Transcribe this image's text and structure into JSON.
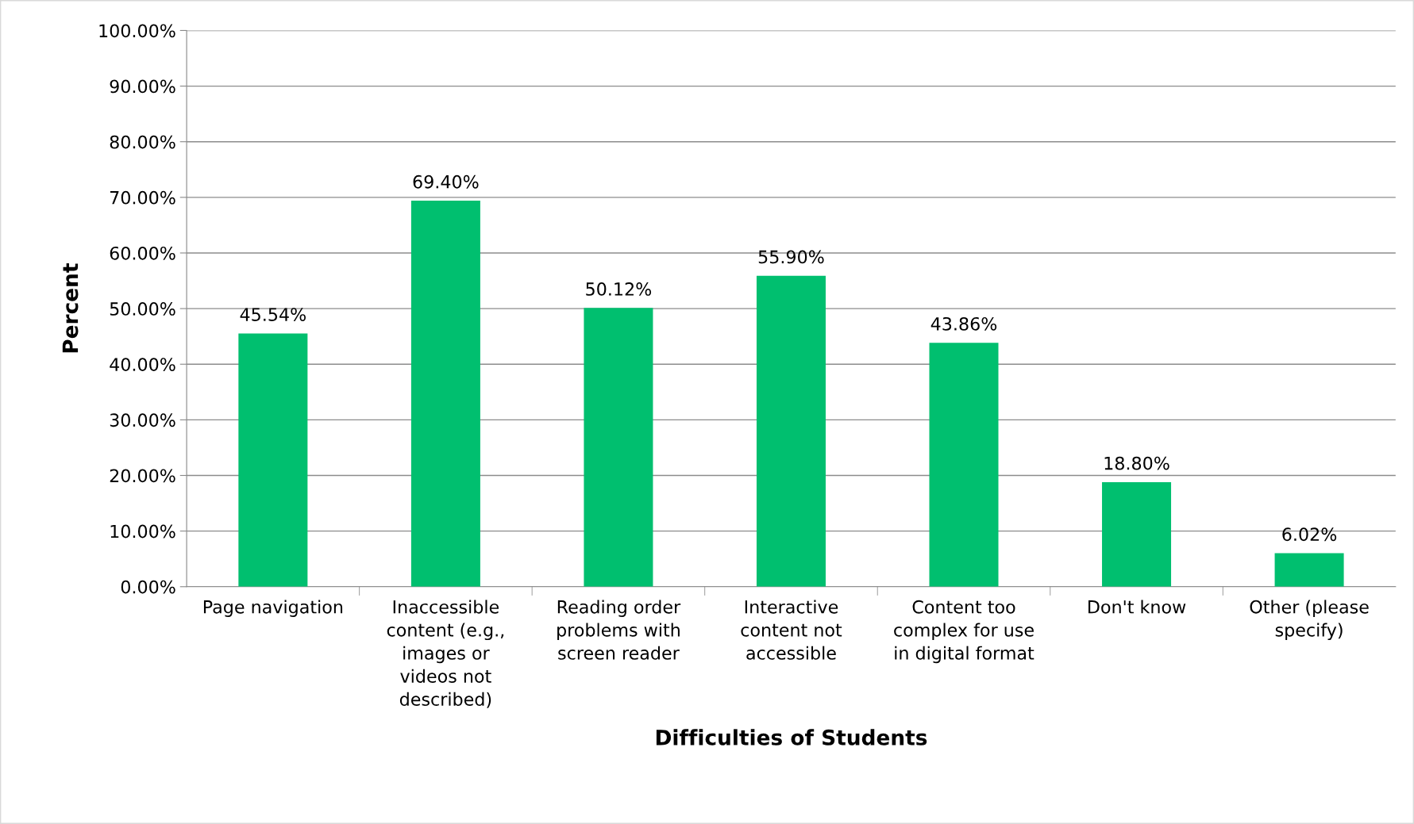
{
  "chart_data": {
    "type": "bar",
    "xlabel": "Difficulties of Students",
    "ylabel": "Percent",
    "categories": [
      "Page navigation",
      "Inaccessible\ncontent (e.g.,\nimages or\nvideos not\ndescribed)",
      "Reading order\nproblems with\nscreen reader",
      "Interactive\ncontent not\naccessible",
      "Content too\ncomplex for use\nin digital format",
      "Don't know",
      "Other (please\nspecify)"
    ],
    "values": [
      45.54,
      69.4,
      50.12,
      55.9,
      43.86,
      18.8,
      6.02
    ],
    "value_labels": [
      "45.54%",
      "69.40%",
      "50.12%",
      "55.90%",
      "43.86%",
      "18.80%",
      "6.02%"
    ],
    "color": "#00bf6f",
    "ylim": [
      0,
      100
    ],
    "yticks": [
      {
        "value": 0,
        "label": "0.00%"
      },
      {
        "value": 10,
        "label": "10.00%"
      },
      {
        "value": 20,
        "label": "20.00%"
      },
      {
        "value": 30,
        "label": "30.00%"
      },
      {
        "value": 40,
        "label": "40.00%"
      },
      {
        "value": 50,
        "label": "50.00%"
      },
      {
        "value": 60,
        "label": "60.00%"
      },
      {
        "value": 70,
        "label": "70.00%"
      },
      {
        "value": 80,
        "label": "80.00%"
      },
      {
        "value": 90,
        "label": "90.00%"
      },
      {
        "value": 100,
        "label": "100.00%"
      }
    ],
    "grid": "y"
  }
}
